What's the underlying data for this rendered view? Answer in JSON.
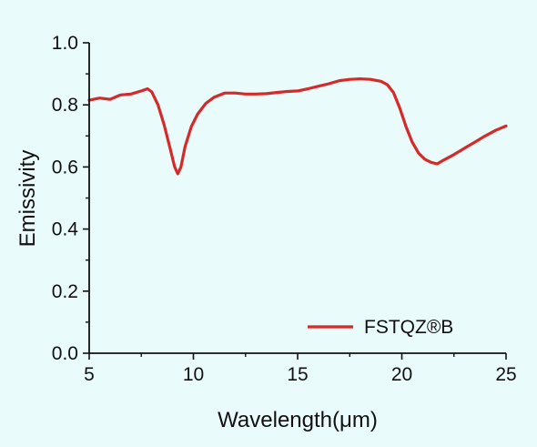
{
  "colors": {
    "background": "#e9fbfb",
    "axis": "#111111",
    "series": "#d42a2a"
  },
  "chart_data": {
    "type": "line",
    "title": "",
    "xlabel": "Wavelength(μm)",
    "ylabel": "Emissivity",
    "xlim": [
      5,
      25
    ],
    "ylim": [
      0.0,
      1.0
    ],
    "xticks": [
      "5",
      "10",
      "15",
      "20",
      "25"
    ],
    "yticks": [
      "0.0",
      "0.2",
      "0.4",
      "0.6",
      "0.8",
      "1.0"
    ],
    "grid": false,
    "legend_position": "bottom-right",
    "series": [
      {
        "name": "FSTQZ®B",
        "color": "#d42a2a",
        "x": [
          5.0,
          5.5,
          6.0,
          6.5,
          7.0,
          7.5,
          7.8,
          8.0,
          8.3,
          8.6,
          8.9,
          9.1,
          9.25,
          9.4,
          9.6,
          9.9,
          10.2,
          10.6,
          11.0,
          11.5,
          12.0,
          12.5,
          13.0,
          13.5,
          14.0,
          14.5,
          15.0,
          15.5,
          16.0,
          16.5,
          17.0,
          17.5,
          18.0,
          18.5,
          19.0,
          19.3,
          19.6,
          19.9,
          20.2,
          20.5,
          20.8,
          21.1,
          21.4,
          21.7,
          22.0,
          22.5,
          23.0,
          23.5,
          24.0,
          24.5,
          25.0
        ],
        "y": [
          0.815,
          0.822,
          0.818,
          0.832,
          0.835,
          0.845,
          0.852,
          0.842,
          0.8,
          0.735,
          0.655,
          0.6,
          0.578,
          0.6,
          0.665,
          0.73,
          0.77,
          0.805,
          0.825,
          0.838,
          0.838,
          0.835,
          0.835,
          0.836,
          0.84,
          0.843,
          0.845,
          0.852,
          0.86,
          0.868,
          0.878,
          0.882,
          0.884,
          0.882,
          0.876,
          0.865,
          0.84,
          0.79,
          0.73,
          0.68,
          0.645,
          0.625,
          0.615,
          0.61,
          0.622,
          0.64,
          0.66,
          0.68,
          0.7,
          0.718,
          0.732
        ]
      }
    ]
  }
}
